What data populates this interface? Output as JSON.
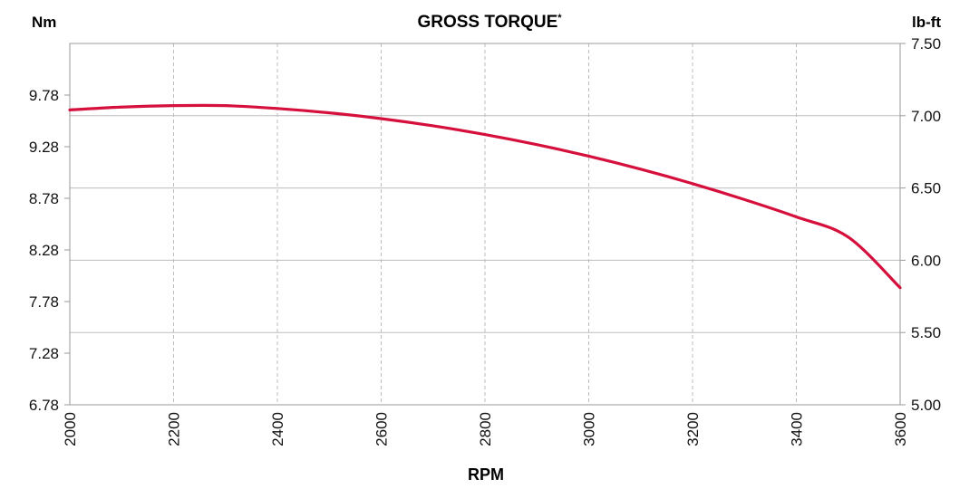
{
  "chart_data": {
    "type": "line",
    "title": "GROSS TORQUE",
    "title_marker": "*",
    "xlabel": "RPM",
    "ylabel_left": "Nm",
    "ylabel_right": "lb-ft",
    "xlim": [
      2000,
      3600
    ],
    "x_ticks": [
      "2000",
      "2200",
      "2400",
      "2600",
      "2800",
      "3000",
      "3200",
      "3400",
      "3600"
    ],
    "ylim_right": [
      5.0,
      7.5
    ],
    "y_ticks_right": [
      "5.00",
      "5.50",
      "6.00",
      "6.50",
      "7.00",
      "7.50"
    ],
    "ylim_left_labels": [
      "6.78",
      "7.28",
      "7.78",
      "8.28",
      "8.78",
      "9.28",
      "9.78"
    ],
    "grid": {
      "vertical": "dashed",
      "horizontal": "solid"
    },
    "series": [
      {
        "color": "#d6103c",
        "x": [
          2000,
          2100,
          2200,
          2300,
          2400,
          2500,
          2600,
          2700,
          2800,
          2900,
          3000,
          3100,
          3200,
          3300,
          3400,
          3500,
          3600
        ],
        "y": [
          7.04,
          7.06,
          7.07,
          7.07,
          7.05,
          7.02,
          6.98,
          6.93,
          6.87,
          6.8,
          6.72,
          6.63,
          6.53,
          6.42,
          6.3,
          6.16,
          5.81
        ]
      }
    ]
  }
}
